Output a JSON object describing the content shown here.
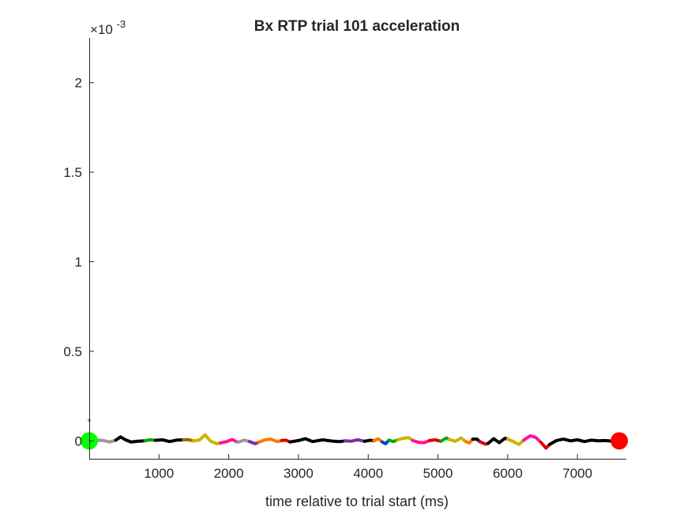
{
  "chart_data": {
    "type": "line",
    "title": "Bx  RTP trial 101 acceleration",
    "xlabel": "time relative to trial start (ms)",
    "ylabel": "",
    "xlim": [
      0,
      7700
    ],
    "ylim": [
      -0.0001,
      0.00225
    ],
    "y_scale_factor_label": "×10",
    "y_scale_exponent": "-3",
    "y_scale": 0.001,
    "x_ticks": [
      1000,
      2000,
      3000,
      4000,
      5000,
      6000,
      7000
    ],
    "x_tick_labels": [
      "1000",
      "2000",
      "3000",
      "4000",
      "5000",
      "6000",
      "7000"
    ],
    "y_ticks": [
      0,
      0.0005,
      0.001,
      0.0015,
      0.002
    ],
    "y_tick_labels": [
      "0",
      "0.5",
      "1",
      "1.5",
      "2"
    ],
    "grid": false,
    "legend": "none",
    "start_marker": {
      "x": 0,
      "y": 0,
      "color": "#00ff00"
    },
    "end_marker": {
      "x": 7600,
      "y": 0,
      "color": "#ff0000"
    },
    "outlier_point": {
      "x": 0,
      "y": 0.000115,
      "color": "#999999"
    },
    "segments": [
      {
        "color": "#999999",
        "x": [
          0,
          100,
          200,
          300,
          380
        ],
        "y": [
          3e-06,
          5e-06,
          2e-06,
          -6e-06,
          4e-06
        ]
      },
      {
        "color": "#000000",
        "x": [
          380,
          450,
          520,
          600,
          700,
          800
        ],
        "y": [
          4e-06,
          2.2e-05,
          6e-06,
          -6e-06,
          -2e-06,
          0.0
        ]
      },
      {
        "color": "#00aa00",
        "x": [
          800,
          870,
          950
        ],
        "y": [
          0.0,
          6e-06,
          3e-06
        ]
      },
      {
        "color": "#000000",
        "x": [
          950,
          1050,
          1150,
          1250,
          1350
        ],
        "y": [
          3e-06,
          6e-06,
          -4e-06,
          4e-06,
          6e-06
        ]
      },
      {
        "color": "#996600",
        "x": [
          1350,
          1420,
          1490
        ],
        "y": [
          6e-06,
          7e-06,
          0.0
        ]
      },
      {
        "color": "#ccb300",
        "x": [
          1490,
          1580,
          1660,
          1740,
          1830,
          1880
        ],
        "y": [
          0.0,
          4e-06,
          3.4e-05,
          -2e-06,
          -1.6e-05,
          -1.2e-05
        ]
      },
      {
        "color": "#ff1493",
        "x": [
          1880,
          1970,
          2050,
          2130
        ],
        "y": [
          -1.2e-05,
          -4e-06,
          8e-06,
          -8e-06
        ]
      },
      {
        "color": "#999999",
        "x": [
          2130,
          2220,
          2300
        ],
        "y": [
          -8e-06,
          4e-06,
          -4e-06
        ]
      },
      {
        "color": "#7b2fa8",
        "x": [
          2300,
          2380,
          2430
        ],
        "y": [
          -4e-06,
          -1.6e-05,
          -8e-06
        ]
      },
      {
        "color": "#ff7700",
        "x": [
          2430,
          2520,
          2600,
          2700,
          2760
        ],
        "y": [
          -8e-06,
          6e-06,
          1e-05,
          -4e-06,
          2e-06
        ]
      },
      {
        "color": "#dd0000",
        "x": [
          2760,
          2820,
          2880
        ],
        "y": [
          2e-06,
          4e-06,
          -6e-06
        ]
      },
      {
        "color": "#000000",
        "x": [
          2880,
          3000,
          3100,
          3200,
          3350,
          3500,
          3600,
          3670
        ],
        "y": [
          -6e-06,
          2e-06,
          1.2e-05,
          -4e-06,
          6e-06,
          -2e-06,
          -4e-06,
          0.0
        ]
      },
      {
        "color": "#7b2fa8",
        "x": [
          3670,
          3750,
          3850,
          3950
        ],
        "y": [
          0.0,
          -2e-06,
          6e-06,
          -2e-06
        ]
      },
      {
        "color": "#000000",
        "x": [
          3950,
          4030,
          4080
        ],
        "y": [
          -2e-06,
          4e-06,
          0.0
        ]
      },
      {
        "color": "#ff7700",
        "x": [
          4080,
          4140,
          4200
        ],
        "y": [
          0.0,
          1.2e-05,
          -6e-06
        ]
      },
      {
        "color": "#0044cc",
        "x": [
          4200,
          4250,
          4300
        ],
        "y": [
          -6e-06,
          -1.6e-05,
          4e-06
        ]
      },
      {
        "color": "#00aa00",
        "x": [
          4300,
          4360,
          4420
        ],
        "y": [
          4e-06,
          -4e-06,
          6e-06
        ]
      },
      {
        "color": "#ccb300",
        "x": [
          4420,
          4500,
          4580,
          4640
        ],
        "y": [
          6e-06,
          1.4e-05,
          1.8e-05,
          2e-06
        ]
      },
      {
        "color": "#ff1493",
        "x": [
          4640,
          4720,
          4800,
          4880
        ],
        "y": [
          2e-06,
          -8e-06,
          -1e-05,
          2e-06
        ]
      },
      {
        "color": "#dd0000",
        "x": [
          4880,
          4960,
          5040
        ],
        "y": [
          2e-06,
          6e-06,
          -2e-06
        ]
      },
      {
        "color": "#00aa00",
        "x": [
          5040,
          5120,
          5160
        ],
        "y": [
          -2e-06,
          1.6e-05,
          8e-06
        ]
      },
      {
        "color": "#ccb300",
        "x": [
          5160,
          5250,
          5330,
          5400
        ],
        "y": [
          8e-06,
          -2e-06,
          1.6e-05,
          -4e-06
        ]
      },
      {
        "color": "#ff7700",
        "x": [
          5400,
          5450,
          5500
        ],
        "y": [
          -4e-06,
          -1.2e-05,
          1e-05
        ]
      },
      {
        "color": "#000000",
        "x": [
          5500,
          5560,
          5600
        ],
        "y": [
          1e-05,
          1e-05,
          -4e-06
        ]
      },
      {
        "color": "#dd0000",
        "x": [
          5600,
          5680,
          5720
        ],
        "y": [
          -4e-06,
          -1.8e-05,
          -1.4e-05
        ]
      },
      {
        "color": "#000000",
        "x": [
          5720,
          5800,
          5880,
          5960,
          6000
        ],
        "y": [
          -1.4e-05,
          1.2e-05,
          -1e-05,
          1.4e-05,
          1e-05
        ]
      },
      {
        "color": "#ccb300",
        "x": [
          6000,
          6080,
          6160,
          6230
        ],
        "y": [
          1e-05,
          -4e-06,
          -2e-05,
          4e-06
        ]
      },
      {
        "color": "#ff1493",
        "x": [
          6230,
          6320,
          6400,
          6480
        ],
        "y": [
          4e-06,
          2.8e-05,
          2e-05,
          -1e-05
        ]
      },
      {
        "color": "#dd0000",
        "x": [
          6480,
          6550,
          6600
        ],
        "y": [
          -1e-05,
          -4e-05,
          -2e-05
        ]
      },
      {
        "color": "#000000",
        "x": [
          6600,
          6700,
          6800,
          6900,
          7000,
          7100,
          7200,
          7300,
          7400,
          7500,
          7600
        ],
        "y": [
          -2e-05,
          2e-06,
          1e-05,
          0.0,
          6e-06,
          -4e-06,
          4e-06,
          0.0,
          2e-06,
          -2e-06,
          0.0
        ]
      }
    ]
  }
}
